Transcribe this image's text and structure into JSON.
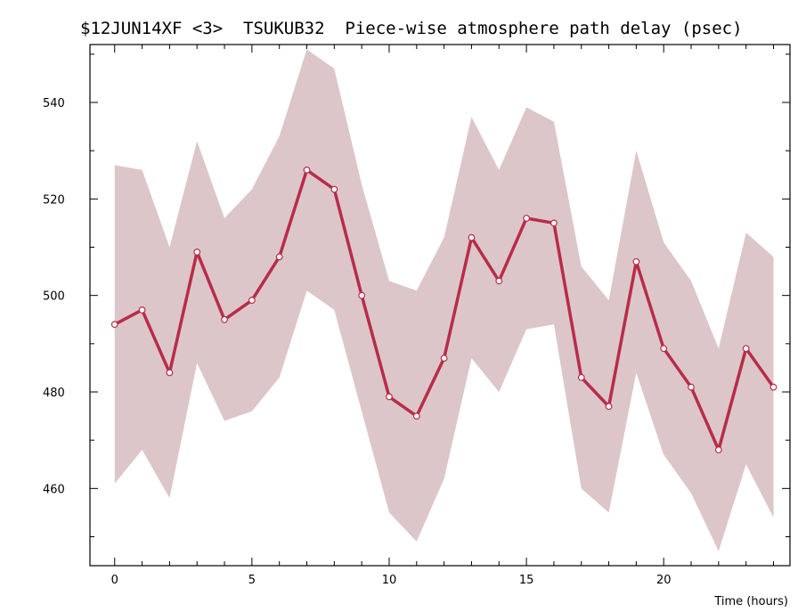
{
  "chart_data": {
    "type": "line",
    "title": "$12JUN14XF <3>  TSUKUB32  Piece-wise atmosphere path delay (psec)",
    "xlabel": "Time (hours)",
    "ylabel": "",
    "xlim": [
      -0.9,
      24.6
    ],
    "ylim": [
      444,
      552
    ],
    "xticks": [
      0,
      5,
      10,
      15,
      20
    ],
    "yticks": [
      460,
      480,
      500,
      520,
      540
    ],
    "grid": false,
    "colors": {
      "line": "#b82c48",
      "band": "#dcc6c9",
      "marker_fill": "#ffffff"
    },
    "series": [
      {
        "x": [
          0,
          1,
          2,
          3,
          4,
          5,
          6,
          7,
          8,
          9,
          10,
          11,
          12,
          13,
          14,
          15,
          16,
          17,
          18,
          19,
          20,
          21,
          22,
          23,
          24
        ],
        "values": [
          494,
          497,
          484,
          509,
          495,
          499,
          508,
          526,
          522,
          500,
          479,
          475,
          487,
          512,
          503,
          516,
          515,
          483,
          477,
          507,
          489,
          481,
          468,
          489,
          481
        ],
        "upper": [
          527,
          526,
          510,
          532,
          516,
          522,
          533,
          551,
          547,
          523,
          503,
          501,
          512,
          537,
          526,
          539,
          536,
          506,
          499,
          530,
          511,
          503,
          489,
          513,
          508
        ],
        "lower": [
          461,
          468,
          458,
          486,
          474,
          476,
          483,
          501,
          497,
          476,
          455,
          449,
          462,
          487,
          480,
          493,
          494,
          460,
          455,
          484,
          467,
          459,
          447,
          465,
          454
        ]
      }
    ]
  }
}
